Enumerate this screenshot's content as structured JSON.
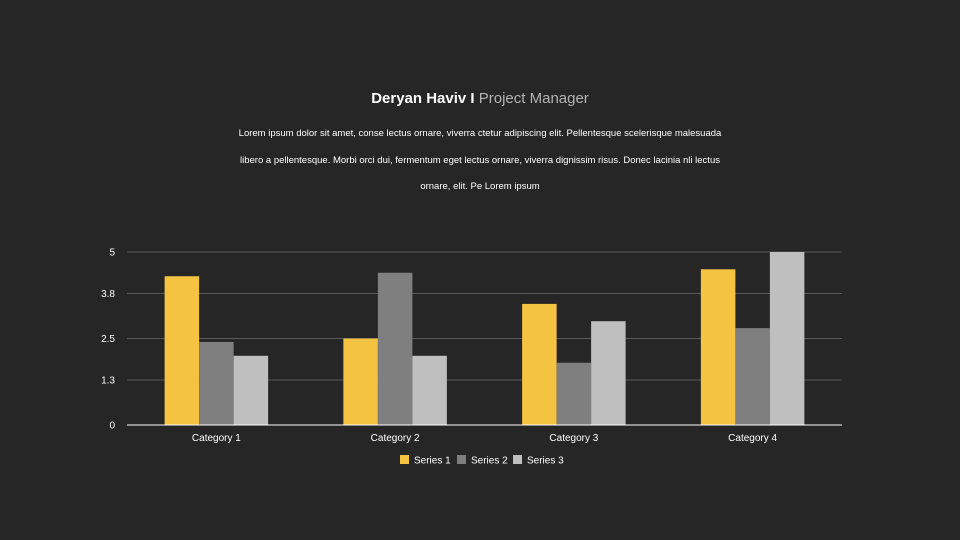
{
  "header": {
    "name": "Deryan Haviv I",
    "role": "Project Manager"
  },
  "description": {
    "lines": [
      "Lorem ipsum dolor sit amet, conse lectus ornare, viverra ctetur adipiscing elit. Pellentesque scelerisque malesuada",
      "libero a pellentesque. Morbi orci dui, fermentum eget lectus ornare, viverra dignissim risus. Donec lacinia nli lectus",
      "ornare, elit. Pe Lorem ipsum"
    ]
  },
  "chart_data": {
    "type": "bar",
    "categories": [
      "Category 1",
      "Category 2",
      "Category 3",
      "Category 4"
    ],
    "series": [
      {
        "name": "Series 1",
        "color": "#f5c342",
        "values": [
          4.3,
          2.5,
          3.5,
          4.5
        ]
      },
      {
        "name": "Series 2",
        "color": "#7f7f7f",
        "values": [
          2.4,
          4.4,
          1.8,
          2.8
        ]
      },
      {
        "name": "Series 3",
        "color": "#bfbfbf",
        "values": [
          2.0,
          2.0,
          3.0,
          5.0
        ]
      }
    ],
    "yticks": [
      "0",
      "1.3",
      "2.5",
      "3.8",
      "5"
    ],
    "ylim": [
      0,
      5
    ],
    "grid": true,
    "legend": "bottom"
  }
}
